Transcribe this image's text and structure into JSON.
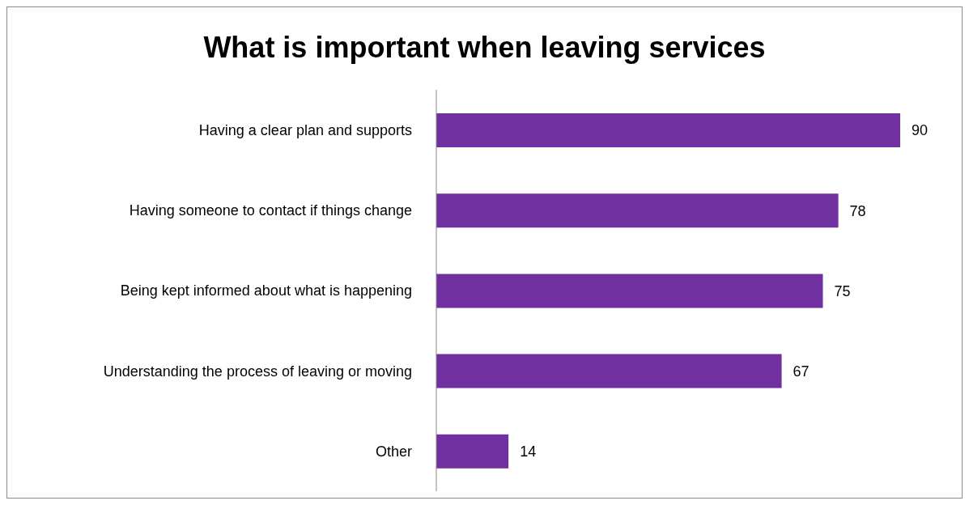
{
  "chart_data": {
    "type": "bar",
    "orientation": "horizontal",
    "title": "What is important when leaving services",
    "categories": [
      "Having a clear plan and supports",
      "Having someone to contact if things change",
      "Being kept informed about what is happening",
      "Understanding the process of leaving or moving",
      "Other"
    ],
    "values": [
      90,
      78,
      75,
      67,
      14
    ],
    "color": "#7030a0",
    "data_labels": true,
    "grid": false,
    "legend": false
  }
}
